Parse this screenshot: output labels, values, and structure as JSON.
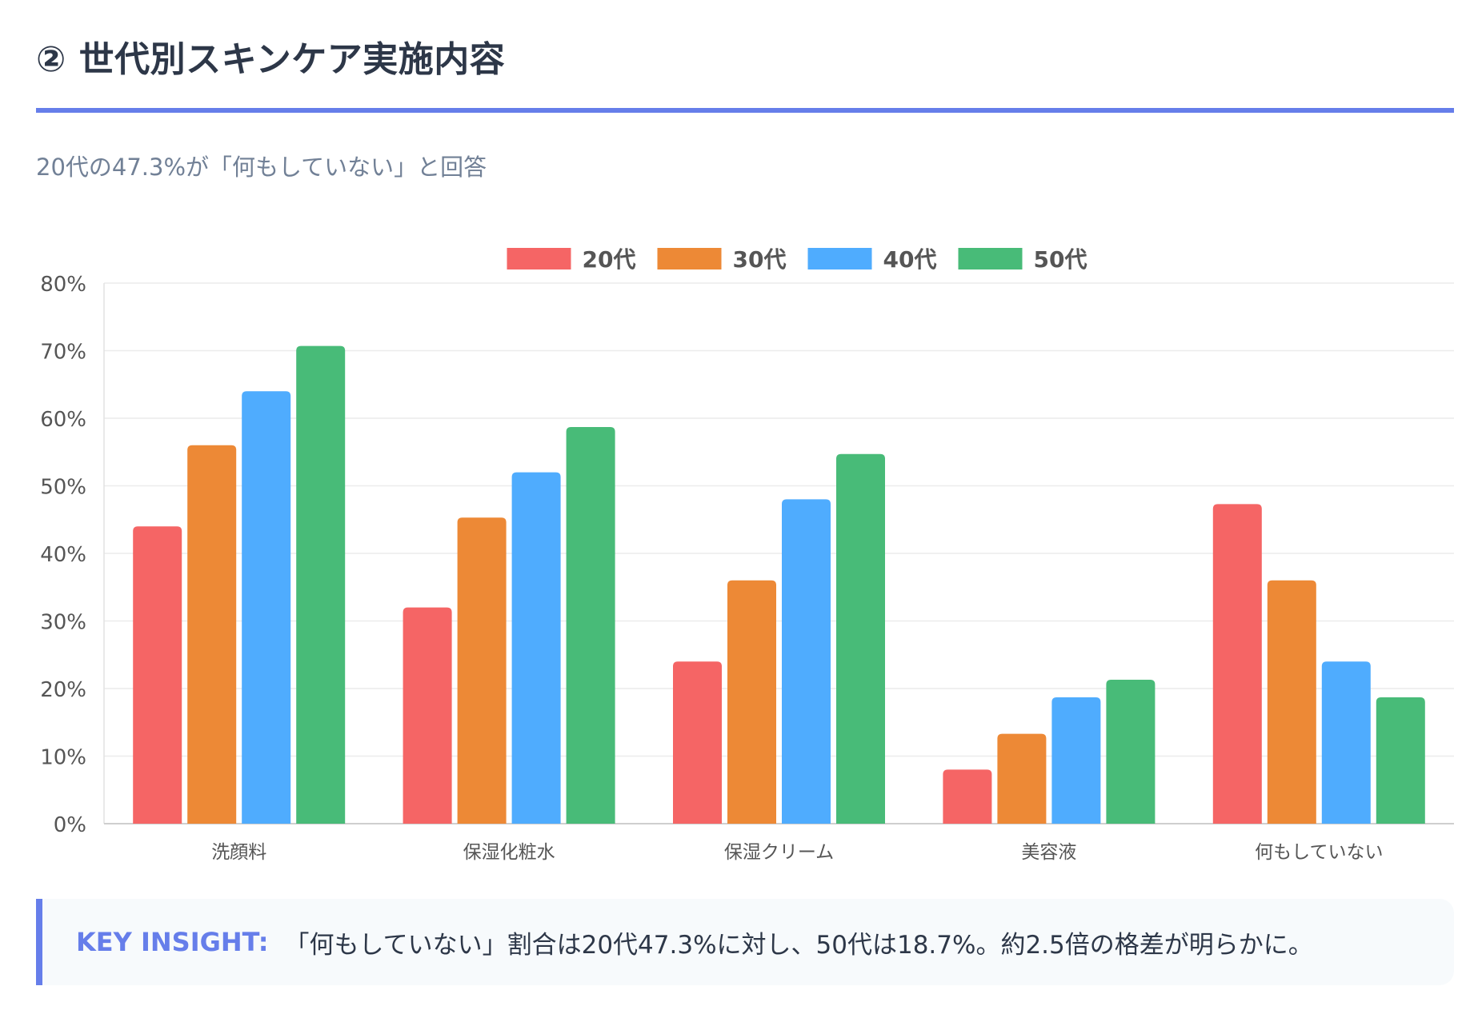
{
  "header": {
    "title": "② 世代別スキンケア実施内容",
    "subtitle": "20代の47.3%が「何もしていない」と回答"
  },
  "chart_data": {
    "type": "bar",
    "title": "",
    "xlabel": "",
    "ylabel": "",
    "categories": [
      "洗顔料",
      "保湿化粧水",
      "保湿クリーム",
      "美容液",
      "何もしていない"
    ],
    "series": [
      {
        "name": "20代",
        "color": "#f56565",
        "values": [
          44.0,
          32.0,
          24.0,
          8.0,
          47.3
        ]
      },
      {
        "name": "30代",
        "color": "#ed8936",
        "values": [
          56.0,
          45.3,
          36.0,
          13.3,
          36.0
        ]
      },
      {
        "name": "40代",
        "color": "#4facfe",
        "values": [
          64.0,
          52.0,
          48.0,
          18.7,
          24.0
        ]
      },
      {
        "name": "50代",
        "color": "#48bb78",
        "values": [
          70.7,
          58.7,
          54.7,
          21.3,
          18.7
        ]
      }
    ],
    "ylim": [
      0,
      80
    ],
    "yticks": [
      0,
      10,
      20,
      30,
      40,
      50,
      60,
      70,
      80
    ],
    "ytick_labels": [
      "0%",
      "10%",
      "20%",
      "30%",
      "40%",
      "50%",
      "60%",
      "70%",
      "80%"
    ],
    "legend_position": "top-center",
    "grid": true
  },
  "insight": {
    "label": "KEY INSIGHT:",
    "text": "「何もしていない」割合は20代47.3%に対し、50代は18.7%。約2.5倍の格差が明らかに。"
  }
}
